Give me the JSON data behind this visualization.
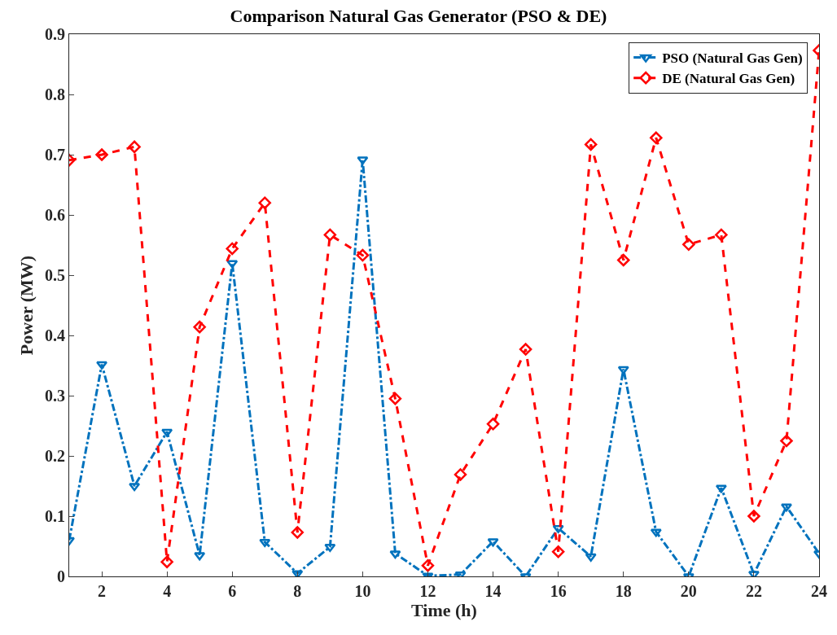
{
  "chart_data": {
    "type": "line",
    "title": "Comparison Natural Gas Generator (PSO & DE)",
    "xlabel": "Time (h)",
    "ylabel": "Power (MW)",
    "x": [
      1,
      2,
      3,
      4,
      5,
      6,
      7,
      8,
      9,
      10,
      11,
      12,
      13,
      14,
      15,
      16,
      17,
      18,
      19,
      20,
      21,
      22,
      23,
      24
    ],
    "series": [
      {
        "name": "PSO (Natural Gas Gen)",
        "color": "#0072bd",
        "marker": "triangle",
        "line_style": "dashdot",
        "values": [
          0.06,
          0.352,
          0.15,
          0.24,
          0.035,
          0.52,
          0.057,
          0.005,
          0.049,
          0.692,
          0.038,
          0.001,
          0.003,
          0.058,
          0,
          0.08,
          0.033,
          0.344,
          0.074,
          0,
          0.147,
          0.004,
          0.116,
          0.038
        ]
      },
      {
        "name": "DE (Natural Gas Gen)",
        "color": "#ff0000",
        "marker": "diamond",
        "line_style": "dashed",
        "values": [
          0.691,
          0.7,
          0.713,
          0.024,
          0.414,
          0.544,
          0.62,
          0.073,
          0.567,
          0.533,
          0.295,
          0.018,
          0.169,
          0.253,
          0.377,
          0.041,
          0.717,
          0.525,
          0.728,
          0.551,
          0.567,
          0.1,
          0.225,
          0.873
        ]
      }
    ],
    "xlim": [
      1,
      24
    ],
    "xticks": [
      2,
      4,
      6,
      8,
      10,
      12,
      14,
      16,
      18,
      20,
      22,
      24
    ],
    "ylim": [
      0,
      0.9
    ],
    "yticks": [
      0,
      0.1,
      0.2,
      0.3,
      0.4,
      0.5,
      0.6,
      0.7,
      0.8,
      0.9
    ],
    "legend": "top right"
  }
}
